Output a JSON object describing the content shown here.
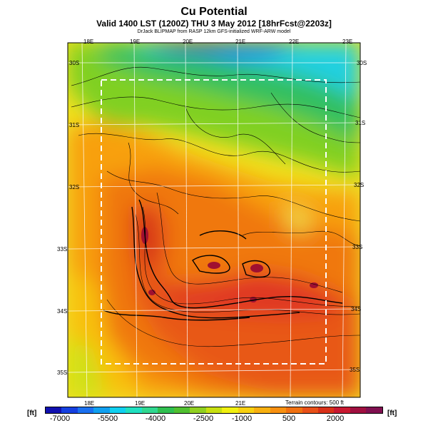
{
  "header": {
    "title": "Cu Potential",
    "subtitle": "Valid 1400 LST (1200Z) THU 3 May 2012 [18hrFcst@2203z]",
    "credit": "DrJack BLIPMAP from RASP 12km GFS-initialized WRF-ARW model"
  },
  "axes": {
    "top_lon": [
      "18E",
      "19E",
      "20E",
      "21E",
      "22E",
      "23E"
    ],
    "bottom_lon": [
      "18E",
      "19E",
      "20E",
      "21E"
    ],
    "left_lat": [
      "30S",
      "31S",
      "32S",
      "33S",
      "34S",
      "35S"
    ],
    "right_lat": [
      "30S",
      "31S",
      "32S",
      "33S",
      "34S",
      "35S"
    ]
  },
  "legend": {
    "unit_left": "[ft]",
    "unit_right": "[ft]",
    "terrain_note": "Terrain contours: 500 ft",
    "tick_labels": [
      "-7000",
      "-5500",
      "-4000",
      "-2500",
      "-1000",
      "500",
      "2000"
    ],
    "colors": [
      "#1010b0",
      "#1540e0",
      "#1a70f0",
      "#10a0f0",
      "#10d0f0",
      "#20e0c0",
      "#30d890",
      "#30c050",
      "#50c030",
      "#90d020",
      "#c8e010",
      "#f0f010",
      "#f8d010",
      "#f8b010",
      "#f89010",
      "#f07010",
      "#e85018",
      "#d83018",
      "#c81830",
      "#a01040",
      "#801050"
    ]
  }
}
